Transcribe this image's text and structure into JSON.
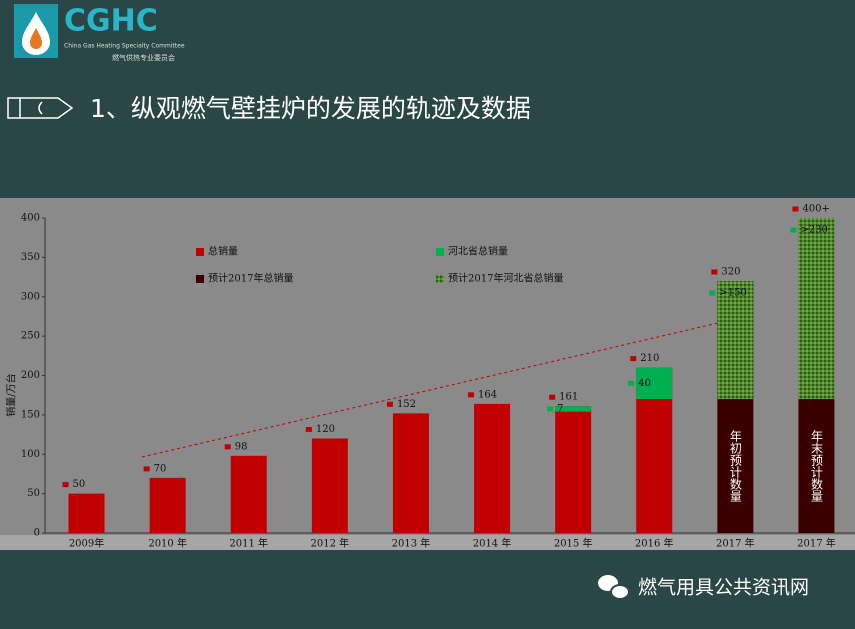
{
  "header": {
    "logo": "CGHC",
    "logo_subtitle": "China Gas Heating Specialty Committee",
    "logo_cn": "燃气供热专业委员会",
    "title": "1、纵观燃气壁挂炉的发展的轨迹及数据"
  },
  "chart_data": {
    "type": "bar",
    "y_label": "销量/万台",
    "categories": [
      "2009年",
      "2010 年",
      "2011 年",
      "2012 年",
      "2013 年",
      "2014 年",
      "2015 年",
      "2016 年",
      "2017 年",
      "2017 年"
    ],
    "series": [
      {
        "name": "总销量",
        "color": "#c00000",
        "values": [
          50,
          70,
          98,
          120,
          152,
          164,
          161,
          210,
          null,
          null
        ]
      },
      {
        "name": "河北省总销量",
        "color": "#00b050",
        "values": [
          null,
          null,
          null,
          null,
          null,
          null,
          7,
          40,
          null,
          null
        ]
      },
      {
        "name": "预计2017年总销量",
        "color": "#3a0000",
        "values": [
          null,
          null,
          null,
          null,
          null,
          null,
          null,
          null,
          320,
          400
        ],
        "value_labels": [
          null,
          null,
          null,
          null,
          null,
          null,
          null,
          null,
          "320",
          "400+"
        ]
      },
      {
        "name": "预计2017年河北省总销量",
        "color": "#4f8a2b",
        "values": [
          null,
          null,
          null,
          null,
          null,
          null,
          null,
          null,
          150,
          230
        ],
        "value_labels": [
          null,
          null,
          null,
          null,
          null,
          null,
          null,
          null,
          ">150",
          ">230"
        ]
      }
    ],
    "annotations": [
      "年初预计数量",
      "年末预计数量"
    ],
    "ylim": [
      0,
      400
    ],
    "yticks": [
      0,
      50,
      100,
      150,
      200,
      250,
      300,
      350,
      400
    ]
  },
  "footer": {
    "text": "燃气用具公共资讯网"
  }
}
